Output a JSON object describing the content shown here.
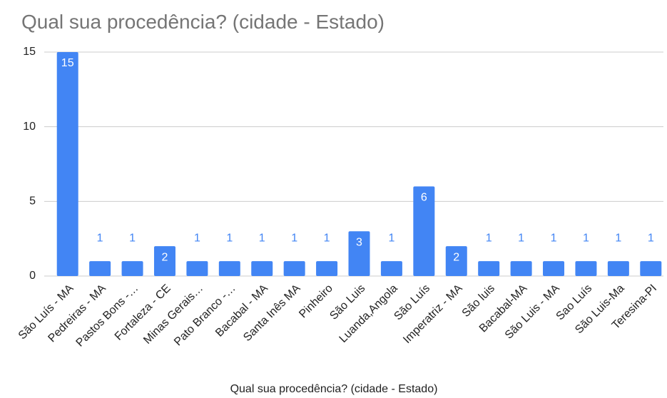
{
  "chart_data": {
    "type": "bar",
    "title": "Qual sua procedência? (cidade - Estado)",
    "x_label": "Qual sua procedência? (cidade - Estado)",
    "categories": [
      "São Luís - MA",
      "Pedreiras - MA",
      "Pastos Bons -…",
      "Fortaleza - CE",
      "Minas Gerais…",
      "Pato Branco -…",
      "Bacabal - MA",
      "Santa Inês MA",
      "Pinheiro",
      "São Luis",
      "Luanda,Angola",
      "São Luís",
      "Imperatriz - MA",
      "São luis",
      "Bacabal-MA",
      "São Luis - MA",
      "Sao Luís",
      "São Luis-Ma",
      "Teresina-PI"
    ],
    "values": [
      15,
      1,
      1,
      2,
      1,
      1,
      1,
      1,
      1,
      3,
      1,
      6,
      2,
      1,
      1,
      1,
      1,
      1,
      1
    ],
    "color": "#4285f4",
    "ylim": [
      0,
      15
    ],
    "yticks": [
      0,
      5,
      10,
      15
    ],
    "grid": true
  }
}
